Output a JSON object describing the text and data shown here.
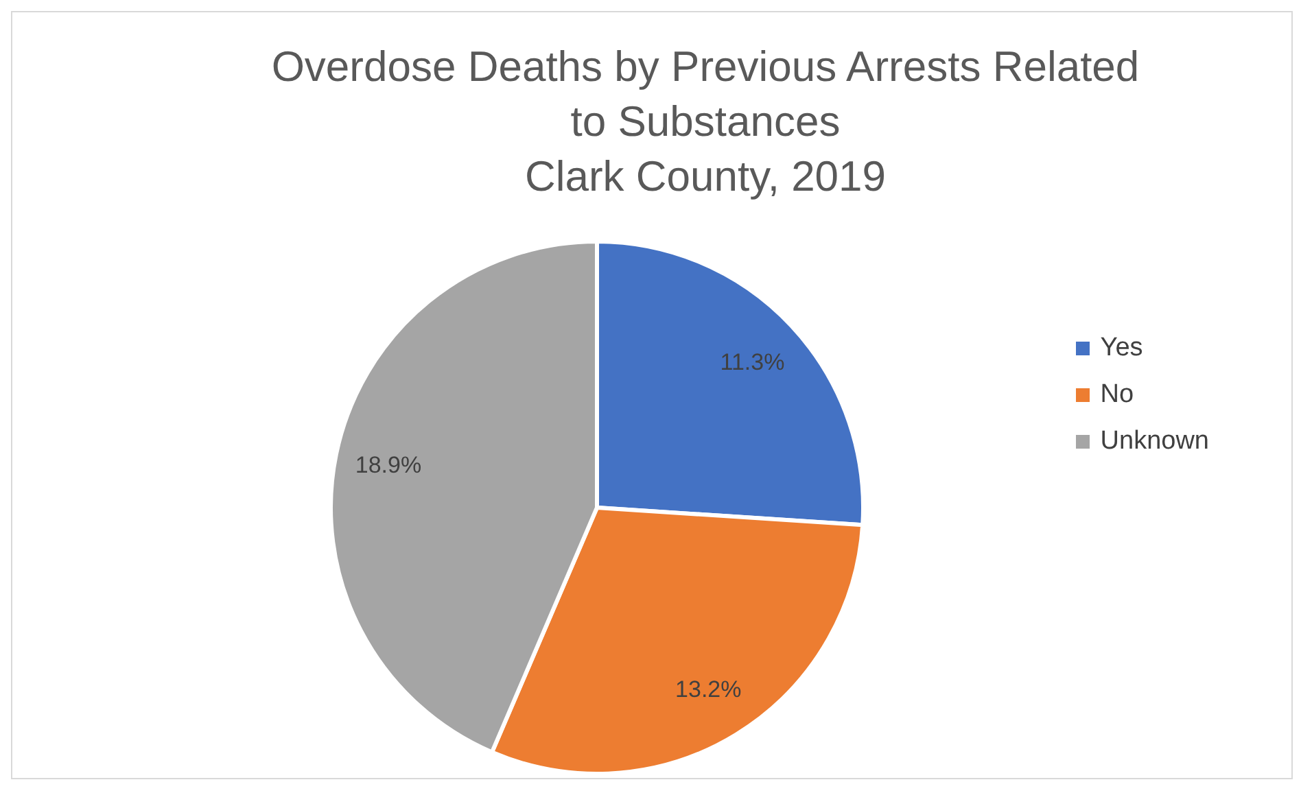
{
  "chart_data": {
    "type": "pie",
    "title": "Overdose Deaths by Previous Arrests Related to Substances\nClark County, 2019",
    "categories": [
      "Yes",
      "No",
      "Unknown"
    ],
    "values": [
      11.3,
      13.2,
      18.9
    ],
    "colors": [
      "#4472c4",
      "#ed7d31",
      "#a5a5a5"
    ],
    "value_labels": [
      "11.3%",
      "13.2%",
      "18.9%"
    ],
    "legend": "right"
  }
}
